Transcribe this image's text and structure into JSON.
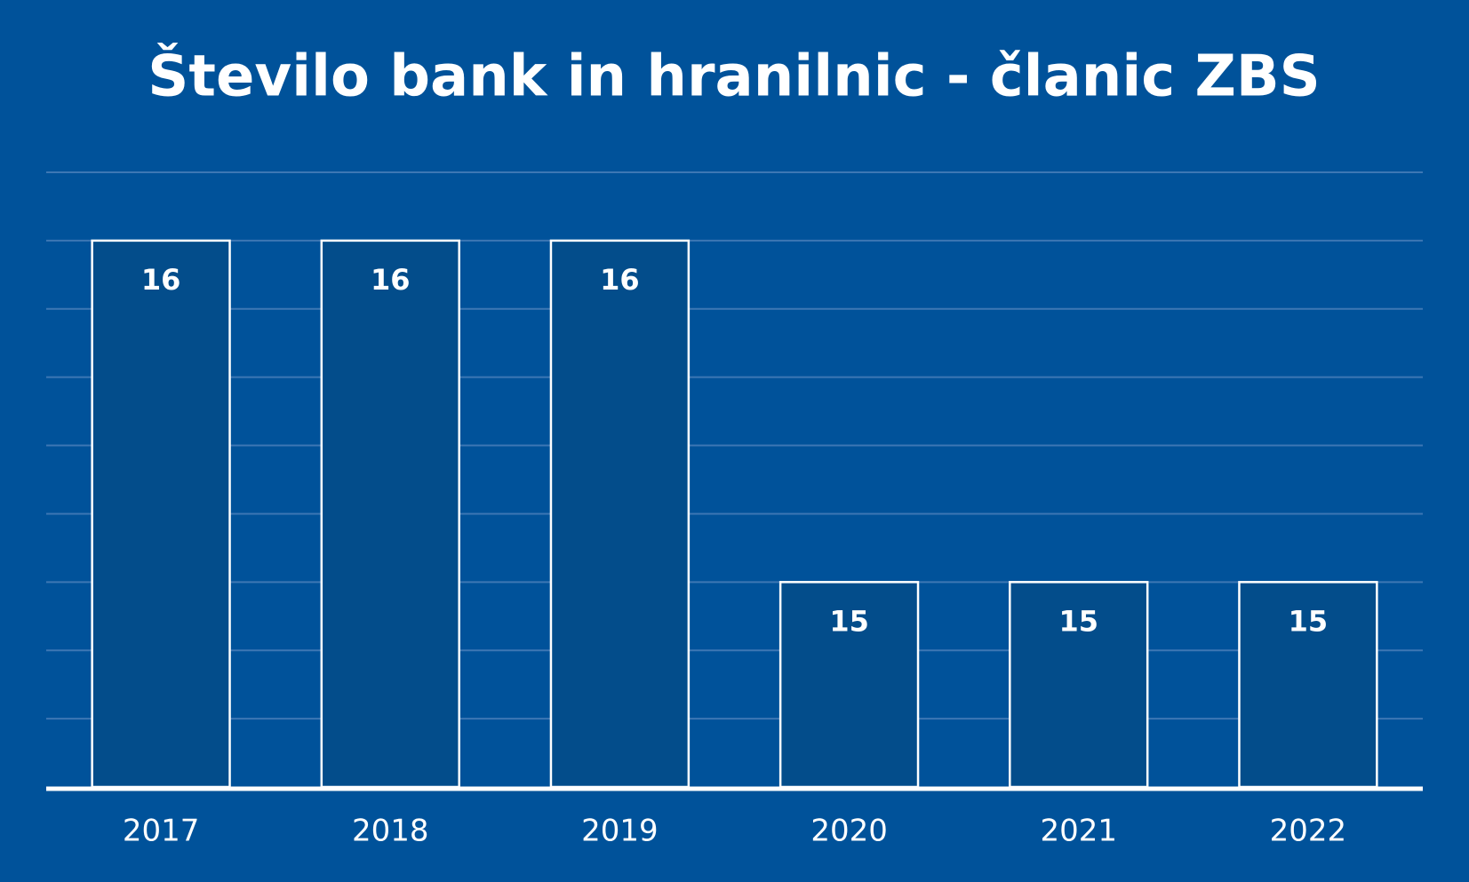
{
  "chart_data": {
    "type": "bar",
    "title": "Število bank in hranilnic - članic ZBS",
    "categories": [
      "2017",
      "2018",
      "2019",
      "2020",
      "2021",
      "2022"
    ],
    "values": [
      16,
      16,
      16,
      15,
      15,
      15
    ],
    "color": "#034d8b",
    "ylim": [
      14.4,
      16.2
    ],
    "yticks": [
      14.6,
      14.8,
      15,
      15.2,
      15.4,
      15.6,
      15.8,
      16,
      16.2
    ],
    "grid": true
  }
}
